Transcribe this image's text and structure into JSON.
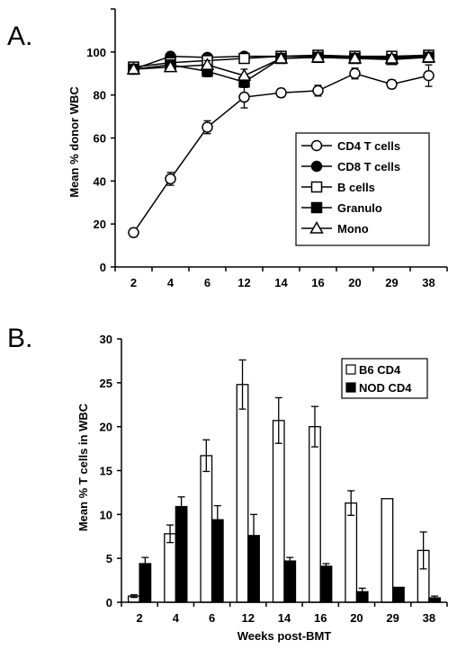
{
  "chart_data": [
    {
      "type": "line",
      "panel_label": "A.",
      "categories": [
        "2",
        "4",
        "6",
        "12",
        "14",
        "16",
        "20",
        "29",
        "38"
      ],
      "ylabel": "Mean % donor WBC",
      "xlabel": "",
      "ylim": [
        0,
        120
      ],
      "yticks": [
        0,
        20,
        40,
        60,
        80,
        100
      ],
      "legend_position": "right",
      "series": [
        {
          "name": "CD4 T cells",
          "marker": "circle-open",
          "values": [
            16,
            41,
            65,
            79,
            81,
            82,
            90,
            85,
            89
          ],
          "errors": [
            2,
            3,
            3,
            5,
            2,
            2.5,
            2.5,
            2,
            5
          ]
        },
        {
          "name": "CD8 T cells",
          "marker": "circle-filled",
          "values": [
            92,
            98,
            97.5,
            98,
            98,
            98,
            97.5,
            97.5,
            98
          ],
          "errors": [
            1,
            1,
            1,
            1,
            1,
            1,
            1,
            1,
            1
          ]
        },
        {
          "name": "B cells",
          "marker": "square-open",
          "values": [
            93,
            95,
            96,
            97,
            98,
            98.5,
            98,
            98,
            98.5
          ],
          "errors": [
            2,
            1.5,
            2,
            2,
            1,
            1,
            1,
            1,
            1
          ]
        },
        {
          "name": "Granulo",
          "marker": "square-filled",
          "values": [
            92,
            94,
            91,
            86,
            97,
            97.5,
            97,
            96.5,
            97.5
          ],
          "errors": [
            1.5,
            2,
            2.5,
            2.5,
            1.5,
            1.5,
            1,
            1,
            1.5
          ]
        },
        {
          "name": "Mono",
          "marker": "triangle-open",
          "values": [
            92,
            93,
            94,
            89,
            97,
            97.5,
            97,
            97,
            97.5
          ],
          "errors": [
            1.5,
            2,
            2,
            3,
            1.5,
            1,
            1,
            1,
            1
          ]
        }
      ]
    },
    {
      "type": "bar",
      "panel_label": "B.",
      "categories": [
        "2",
        "4",
        "6",
        "12",
        "14",
        "16",
        "20",
        "29",
        "38"
      ],
      "ylabel": "Mean % T cells in WBC",
      "xlabel": "Weeks post-BMT",
      "ylim": [
        0,
        30
      ],
      "yticks": [
        0,
        5,
        10,
        15,
        20,
        25,
        30
      ],
      "legend_position": "top-right",
      "series": [
        {
          "name": "B6 CD4",
          "fill": "open",
          "values": [
            0.7,
            7.8,
            16.7,
            24.8,
            20.7,
            20.0,
            11.3,
            11.8,
            5.9
          ],
          "errors": [
            0.15,
            1.0,
            1.8,
            2.8,
            2.6,
            2.3,
            1.4,
            0,
            2.1
          ]
        },
        {
          "name": "NOD CD4",
          "fill": "filled",
          "values": [
            4.4,
            10.9,
            9.4,
            7.6,
            4.7,
            4.1,
            1.2,
            1.7,
            0.5
          ],
          "errors": [
            0.7,
            1.1,
            1.6,
            2.4,
            0.4,
            0.3,
            0.4,
            0,
            0.2
          ]
        }
      ]
    }
  ]
}
